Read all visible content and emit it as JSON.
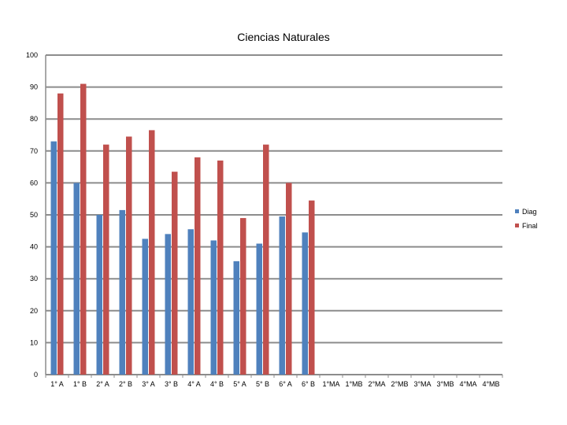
{
  "chart_data": {
    "type": "bar",
    "title": "Ciencias Naturales",
    "xlabel": "",
    "ylabel": "",
    "ylim": [
      0,
      100
    ],
    "yticks": [
      0,
      10,
      20,
      30,
      40,
      50,
      60,
      70,
      80,
      90,
      100
    ],
    "grid": true,
    "legend_position": "right",
    "categories": [
      "1° A",
      "1° B",
      "2° A",
      "2° B",
      "3° A",
      "3° B",
      "4° A",
      "4° B",
      "5° A",
      "5° B",
      "6° A",
      "6° B",
      "1°MA",
      "1°MB",
      "2°MA",
      "2°MB",
      "3°MA",
      "3°MB",
      "4°MA",
      "4°MB"
    ],
    "series": [
      {
        "name": "Diag",
        "color": "#4f81bd",
        "values": [
          73,
          60,
          50,
          51.5,
          42.5,
          44,
          45.5,
          42,
          35.5,
          41,
          49.5,
          44.5,
          null,
          null,
          null,
          null,
          null,
          null,
          null,
          null
        ]
      },
      {
        "name": "Final",
        "color": "#c0504d",
        "values": [
          88,
          91,
          72,
          74.5,
          76.5,
          63.5,
          68,
          67,
          49,
          72,
          60,
          54.5,
          null,
          null,
          null,
          null,
          null,
          null,
          null,
          null
        ]
      }
    ]
  }
}
